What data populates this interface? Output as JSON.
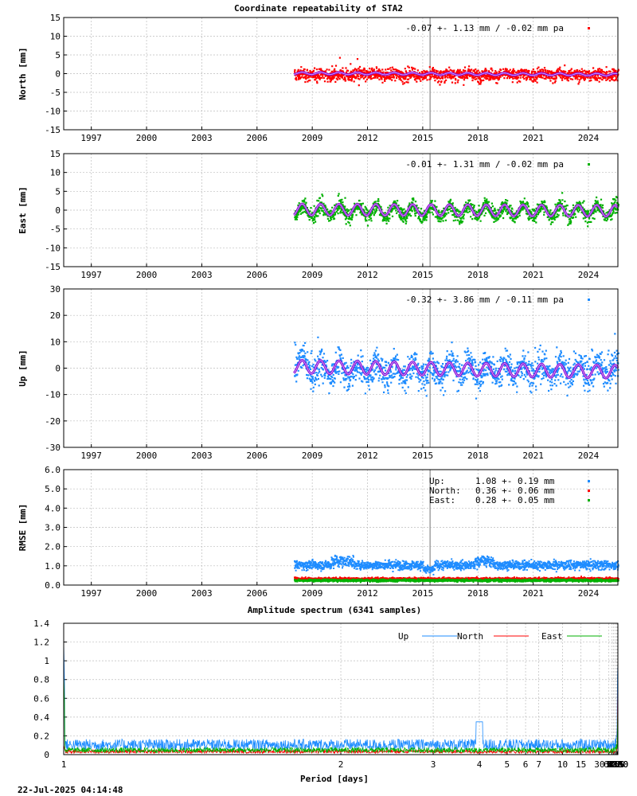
{
  "page": {
    "title": "Coordinate repeatability of STA2",
    "spectrum_title": "Amplitude spectrum (6341 samples)",
    "timestamp": "22-Jul-2025 04:14:48"
  },
  "colors": {
    "north": "#ff0000",
    "east": "#00b000",
    "up": "#1e8cff",
    "model": "#9400d3",
    "event_line": "#a0a0a0"
  },
  "chart_data": [
    {
      "type": "scatter",
      "id": "north",
      "ylabel": "North [mm]",
      "ylim": [
        -15,
        15
      ],
      "yticks": [
        -15,
        -10,
        -5,
        0,
        5,
        10,
        15
      ],
      "xlim": [
        1995.5,
        2025.6
      ],
      "xticks": [
        1997,
        2000,
        2003,
        2006,
        2009,
        2012,
        2015,
        2018,
        2021,
        2024
      ],
      "annotation": "-0.07 +- 1.13 mm / -0.02 mm pa",
      "legend_position": "top-right",
      "data_start": 2008.0,
      "data_end": 2025.6,
      "mean": -0.07,
      "std_mm": 1.13,
      "rate_mm_pa": -0.02,
      "annual_amplitude_mm": 0.3,
      "event_year": 2015.4,
      "grid": true
    },
    {
      "type": "scatter",
      "id": "east",
      "ylabel": "East [mm]",
      "ylim": [
        -15,
        15
      ],
      "yticks": [
        -15,
        -10,
        -5,
        0,
        5,
        10,
        15
      ],
      "xlim": [
        1995.5,
        2025.6
      ],
      "xticks": [
        1997,
        2000,
        2003,
        2006,
        2009,
        2012,
        2015,
        2018,
        2021,
        2024
      ],
      "annotation": "-0.01 +- 1.31 mm / -0.02 mm pa",
      "legend_position": "top-right",
      "data_start": 2008.0,
      "data_end": 2025.6,
      "mean": -0.01,
      "std_mm": 1.31,
      "rate_mm_pa": -0.02,
      "annual_amplitude_mm": 1.5,
      "event_year": 2015.4,
      "grid": true
    },
    {
      "type": "scatter",
      "id": "up",
      "ylabel": "Up [mm]",
      "ylim": [
        -30,
        30
      ],
      "yticks": [
        -30,
        -20,
        -10,
        0,
        10,
        20,
        30
      ],
      "xlim": [
        1995.5,
        2025.6
      ],
      "xticks": [
        1997,
        2000,
        2003,
        2006,
        2009,
        2012,
        2015,
        2018,
        2021,
        2024
      ],
      "annotation": "-0.32 +- 3.86 mm / -0.11 mm pa",
      "legend_position": "top-right",
      "data_start": 2008.0,
      "data_end": 2025.6,
      "mean": -0.32,
      "std_mm": 3.86,
      "rate_mm_pa": -0.11,
      "annual_amplitude_mm": 2.5,
      "event_year": 2015.4,
      "grid": true
    },
    {
      "type": "scatter",
      "id": "rmse",
      "ylabel": "RMSE [mm]",
      "ylim": [
        0,
        6
      ],
      "yticks": [
        "0.0",
        "1.0",
        "2.0",
        "3.0",
        "4.0",
        "5.0",
        "6.0"
      ],
      "xlim": [
        1995.5,
        2025.6
      ],
      "xticks": [
        1997,
        2000,
        2003,
        2006,
        2009,
        2012,
        2015,
        2018,
        2021,
        2024
      ],
      "legend_position": "top-right",
      "event_year": 2015.4,
      "grid": true,
      "series": [
        {
          "name": "Up:",
          "label": "1.08 +- 0.19 mm",
          "mean": 1.08,
          "std": 0.19,
          "color": "#1e8cff"
        },
        {
          "name": "North:",
          "label": "0.36 +- 0.06 mm",
          "mean": 0.36,
          "std": 0.06,
          "color": "#ff0000"
        },
        {
          "name": "East:",
          "label": "0.28 +- 0.05 mm",
          "mean": 0.28,
          "std": 0.05,
          "color": "#00b000"
        }
      ]
    },
    {
      "type": "line",
      "id": "spectrum",
      "title": "Amplitude spectrum (6341 samples)",
      "xlabel": "Period [days]",
      "xscale": "reciprocal",
      "ylim": [
        0,
        1.4
      ],
      "yticks": [
        "0",
        "0.2",
        "0.4",
        "0.6",
        "0.8",
        "1",
        "1.2",
        "1.4"
      ],
      "xticks": [
        1,
        2,
        3,
        4,
        5,
        6,
        7,
        10,
        15,
        30,
        61,
        91,
        122,
        183,
        365,
        730,
        2190,
        4380,
        8760
      ],
      "legend_position": "top-right",
      "grid": true,
      "series": [
        {
          "name": "Up",
          "color": "#1e8cff",
          "peaks": [
            [
              1.0,
              1.2
            ],
            [
              365,
              1.16
            ],
            [
              730,
              0.68
            ],
            [
              1460,
              0.92
            ],
            [
              3200,
              1.2
            ],
            [
              6300,
              0.98
            ]
          ]
        },
        {
          "name": "North",
          "color": "#ff0000",
          "peaks": [
            [
              1.0,
              0.1
            ],
            [
              365,
              0.5
            ],
            [
              730,
              0.3
            ],
            [
              1460,
              0.4
            ],
            [
              3200,
              0.3
            ],
            [
              6300,
              0.41
            ]
          ]
        },
        {
          "name": "East",
          "color": "#00b000",
          "peaks": [
            [
              1.0,
              0.85
            ],
            [
              365,
              0.95
            ],
            [
              730,
              0.25
            ],
            [
              1460,
              0.3
            ],
            [
              3200,
              0.33
            ],
            [
              6300,
              0.33
            ]
          ]
        }
      ]
    }
  ]
}
